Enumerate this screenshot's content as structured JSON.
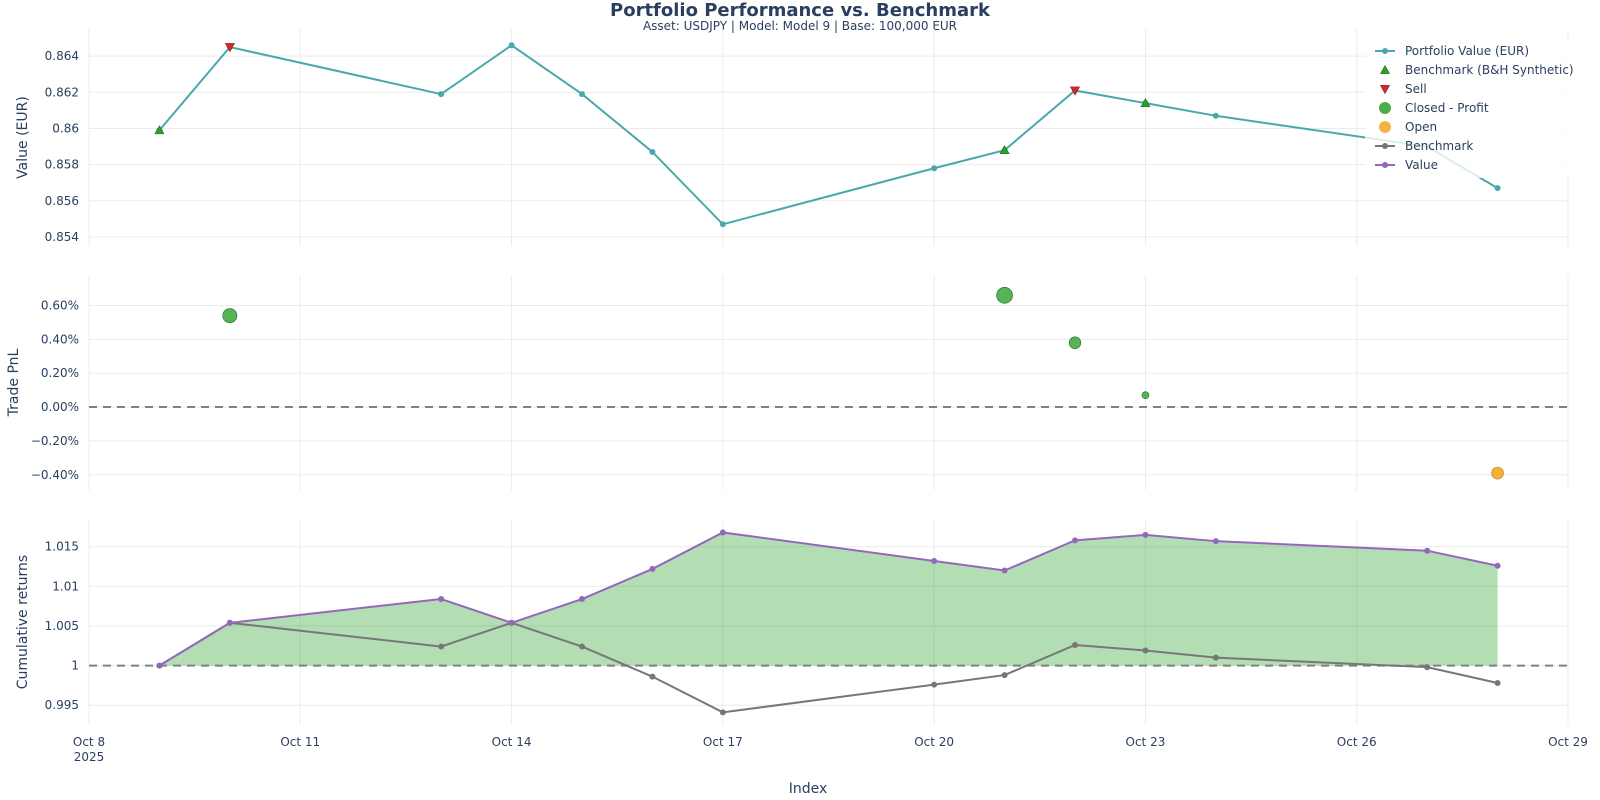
{
  "title": "Portfolio Performance vs. Benchmark",
  "subtitle": "Asset: USDJPY | Model: Model 9 | Base: 100,000 EUR",
  "xlabel": "Index",
  "x_axis": {
    "range": [
      "2025-10-08",
      "2025-10-29"
    ],
    "ticks": [
      {
        "date": "2025-10-08",
        "label": "Oct 8",
        "sub": "2025"
      },
      {
        "date": "2025-10-11",
        "label": "Oct 11"
      },
      {
        "date": "2025-10-14",
        "label": "Oct 14"
      },
      {
        "date": "2025-10-17",
        "label": "Oct 17"
      },
      {
        "date": "2025-10-20",
        "label": "Oct 20"
      },
      {
        "date": "2025-10-23",
        "label": "Oct 23"
      },
      {
        "date": "2025-10-26",
        "label": "Oct 26"
      },
      {
        "date": "2025-10-29",
        "label": "Oct 29"
      }
    ]
  },
  "colors": {
    "portfolio": "#4aa8ac",
    "benchmark_marker": "#2ca02c",
    "sell": "#d62728",
    "profit": "#2ca02c",
    "open": "#f5a623",
    "benchmark_line": "#777777",
    "value_line": "#9467bd",
    "fill_green": "#2ca02c",
    "grid": "#ebebeb",
    "zero_line": "#808080"
  },
  "legend": [
    {
      "label": "Portfolio Value (EUR)",
      "symbol": "line-marker",
      "color": "#4aa8ac"
    },
    {
      "label": "Benchmark (B&H Synthetic)",
      "symbol": "triangle-up",
      "color": "#2ca02c"
    },
    {
      "label": "Sell",
      "symbol": "triangle-down",
      "color": "#d62728"
    },
    {
      "label": "Closed - Profit",
      "symbol": "circle",
      "color": "#2ca02c"
    },
    {
      "label": "Open",
      "symbol": "circle",
      "color": "#f5a623"
    },
    {
      "label": "Benchmark",
      "symbol": "line-marker",
      "color": "#777777"
    },
    {
      "label": "Value",
      "symbol": "line-marker",
      "color": "#9467bd"
    }
  ],
  "chart_data": [
    {
      "type": "line",
      "ylabel": "Value (EUR)",
      "ylim": [
        0.8535,
        0.8655
      ],
      "y_ticks": [
        {
          "value": 0.854,
          "label": "0.854"
        },
        {
          "value": 0.856,
          "label": "0.856"
        },
        {
          "value": 0.858,
          "label": "0.858"
        },
        {
          "value": 0.86,
          "label": "0.86"
        },
        {
          "value": 0.862,
          "label": "0.862"
        },
        {
          "value": 0.864,
          "label": "0.864"
        }
      ],
      "series": [
        {
          "name": "Portfolio Value (EUR)",
          "x": [
            "2025-10-09",
            "2025-10-10",
            "2025-10-13",
            "2025-10-14",
            "2025-10-15",
            "2025-10-16",
            "2025-10-17",
            "2025-10-20",
            "2025-10-21",
            "2025-10-22",
            "2025-10-23",
            "2025-10-24",
            "2025-10-27",
            "2025-10-28"
          ],
          "y": [
            0.8599,
            0.8645,
            0.8619,
            0.8646,
            0.8619,
            0.8587,
            0.8547,
            0.8578,
            0.8588,
            0.8621,
            0.8614,
            0.8607,
            0.859,
            0.8567
          ]
        },
        {
          "name": "Benchmark (B&H Synthetic)",
          "x": [
            "2025-10-09",
            "2025-10-21",
            "2025-10-23"
          ],
          "y": [
            0.8599,
            0.8588,
            0.8614
          ]
        },
        {
          "name": "Sell",
          "x": [
            "2025-10-10",
            "2025-10-22"
          ],
          "y": [
            0.8645,
            0.8621
          ]
        }
      ]
    },
    {
      "type": "scatter",
      "ylabel": "Trade PnL",
      "ylim": [
        -0.0049,
        0.0078
      ],
      "y_ticks": [
        {
          "value": -0.004,
          "label": "−0.40%"
        },
        {
          "value": -0.002,
          "label": "−0.20%"
        },
        {
          "value": 0,
          "label": "0.00%"
        },
        {
          "value": 0.002,
          "label": "0.20%"
        },
        {
          "value": 0.004,
          "label": "0.40%"
        },
        {
          "value": 0.006,
          "label": "0.60%"
        }
      ],
      "series": [
        {
          "name": "Closed - Profit",
          "x": [
            "2025-10-10",
            "2025-10-21",
            "2025-10-22",
            "2025-10-23"
          ],
          "y": [
            0.0054,
            0.0066,
            0.0038,
            0.0007
          ]
        },
        {
          "name": "Open",
          "x": [
            "2025-10-28"
          ],
          "y": [
            -0.0039
          ]
        }
      ]
    },
    {
      "type": "area",
      "ylabel": "Cumulative returns",
      "ylim": [
        0.9925,
        1.0185
      ],
      "y_ticks": [
        {
          "value": 0.995,
          "label": "0.995"
        },
        {
          "value": 1.0,
          "label": "1"
        },
        {
          "value": 1.005,
          "label": "1.005"
        },
        {
          "value": 1.01,
          "label": "1.01"
        },
        {
          "value": 1.015,
          "label": "1.015"
        }
      ],
      "series": [
        {
          "name": "Benchmark",
          "x": [
            "2025-10-09",
            "2025-10-10",
            "2025-10-13",
            "2025-10-14",
            "2025-10-15",
            "2025-10-16",
            "2025-10-17",
            "2025-10-20",
            "2025-10-21",
            "2025-10-22",
            "2025-10-23",
            "2025-10-24",
            "2025-10-27",
            "2025-10-28"
          ],
          "y": [
            1.0,
            1.0054,
            1.0024,
            1.0054,
            1.0024,
            0.9986,
            0.9941,
            0.9976,
            0.9988,
            1.0026,
            1.0019,
            1.001,
            0.9998,
            0.9978
          ]
        },
        {
          "name": "Value",
          "x": [
            "2025-10-09",
            "2025-10-10",
            "2025-10-13",
            "2025-10-14",
            "2025-10-15",
            "2025-10-16",
            "2025-10-17",
            "2025-10-20",
            "2025-10-21",
            "2025-10-22",
            "2025-10-23",
            "2025-10-24",
            "2025-10-27",
            "2025-10-28"
          ],
          "y": [
            1.0,
            1.0054,
            1.0084,
            1.0054,
            1.0084,
            1.0122,
            1.0168,
            1.0132,
            1.012,
            1.0158,
            1.0165,
            1.0157,
            1.0145,
            1.0126
          ]
        }
      ]
    }
  ]
}
